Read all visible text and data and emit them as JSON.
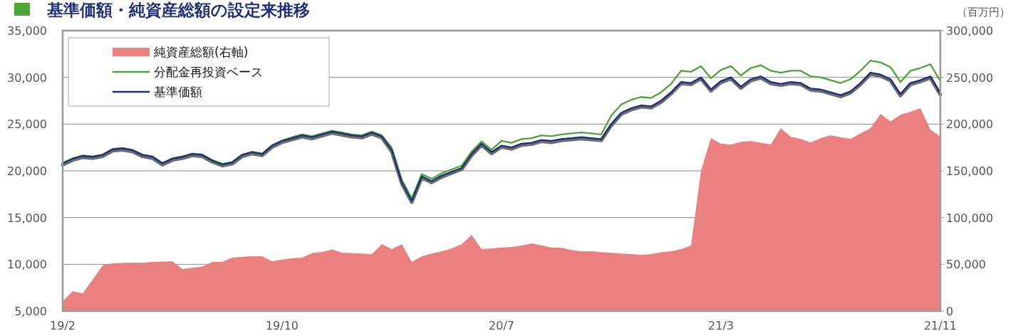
{
  "chart_data": {
    "type": "line",
    "title": "基準価額・純資産総額の設定来推移",
    "y2label": "（百万円）",
    "grid": "y",
    "legend": "top left",
    "categories": [
      "19/2",
      null,
      null,
      null,
      null,
      null,
      null,
      null,
      null,
      null,
      null,
      null,
      null,
      null,
      null,
      null,
      null,
      null,
      null,
      null,
      null,
      null,
      "19/10",
      null,
      null,
      null,
      null,
      null,
      null,
      null,
      null,
      null,
      null,
      null,
      null,
      null,
      null,
      null,
      null,
      null,
      null,
      null,
      null,
      null,
      "20/7",
      null,
      null,
      null,
      null,
      null,
      null,
      null,
      null,
      null,
      null,
      null,
      null,
      null,
      null,
      null,
      null,
      null,
      null,
      null,
      null,
      null,
      "21/3",
      null,
      null,
      null,
      null,
      null,
      null,
      null,
      null,
      null,
      null,
      null,
      null,
      null,
      null,
      null,
      null,
      null,
      null,
      null,
      null,
      null,
      "21/11"
    ],
    "ylim": [
      5000,
      35000
    ],
    "yticks": [
      {
        "value": 5000,
        "label": "5,000"
      },
      {
        "value": 10000,
        "label": "10,000"
      },
      {
        "value": 15000,
        "label": "15,000"
      },
      {
        "value": 20000,
        "label": "20,000"
      },
      {
        "value": 25000,
        "label": "25,000"
      },
      {
        "value": 30000,
        "label": "30,000"
      },
      {
        "value": 35000,
        "label": "35,000"
      }
    ],
    "y2lim": [
      0,
      300000
    ],
    "y2ticks": [
      0,
      {
        "value": 50000,
        "label": "50,000"
      },
      {
        "value": 100000,
        "label": "100,000"
      },
      {
        "value": 150000,
        "label": "150,000"
      },
      {
        "value": 200000,
        "label": "200,000"
      },
      {
        "value": 250000,
        "label": "250,000"
      },
      {
        "value": 300000,
        "label": "300,000"
      }
    ],
    "series": [
      {
        "name": "純資産総額(右軸)",
        "type": "area",
        "axis": "y2",
        "color": "#eb8080",
        "values": [
          10700,
          21300,
          19000,
          33500,
          49000,
          51000,
          51500,
          51800,
          51800,
          52500,
          53000,
          53300,
          45000,
          46500,
          47500,
          52500,
          52800,
          57100,
          58000,
          58600,
          58600,
          53300,
          55000,
          56500,
          57100,
          62000,
          63200,
          66000,
          62400,
          62000,
          61500,
          61000,
          71600,
          66200,
          71600,
          52500,
          58600,
          61500,
          64000,
          67000,
          71600,
          81500,
          66200,
          67000,
          68000,
          68500,
          70000,
          72300,
          70500,
          68000,
          67800,
          65500,
          64000,
          64000,
          63000,
          62400,
          61500,
          61000,
          60200,
          61000,
          63000,
          64000,
          66200,
          70000,
          150000,
          185000,
          179000,
          178200,
          181000,
          182000,
          180000,
          178200,
          195700,
          186500,
          184000,
          180500,
          185000,
          188100,
          186000,
          184300,
          190000,
          195700,
          210900,
          203000,
          210000,
          213200,
          217000,
          194200,
          186500
        ]
      },
      {
        "type": "line",
        "color": "#6e6e6e",
        "values": [
          20650,
          21150,
          21450,
          21350,
          21550,
          22150,
          22250,
          22050,
          21550,
          21350,
          20650,
          21150,
          21350,
          21650,
          21550,
          20950,
          20550,
          20750,
          21550,
          21850,
          21650,
          22550,
          23050,
          23350,
          23650,
          23450,
          23750,
          24050,
          23850,
          23650,
          23550,
          23950,
          23550,
          22050,
          18650,
          16650,
          19250,
          18750,
          19350,
          19750,
          20150,
          21650,
          22750,
          21850,
          22550,
          22350,
          22750,
          22850,
          23150,
          23050,
          23250,
          23350,
          23450,
          23350,
          23250,
          24850,
          26050,
          26550,
          26850,
          26750,
          27350,
          28250,
          29350,
          29250,
          29850,
          28550,
          29450,
          29850,
          28850,
          29650,
          29950,
          29350,
          29150,
          29350,
          29250,
          28650,
          28550,
          28250,
          27950,
          28350,
          29250,
          30350,
          30150,
          29650,
          28050,
          29250,
          29550,
          29950,
          28150
        ]
      },
      {
        "name": "分配金再投資ベース",
        "type": "line",
        "color": "#4ca535",
        "values": [
          20850,
          21350,
          21650,
          21550,
          21750,
          22350,
          22450,
          22250,
          21750,
          21550,
          20850,
          21350,
          21550,
          21850,
          21750,
          21150,
          20750,
          20950,
          21750,
          22050,
          21850,
          22750,
          23250,
          23600,
          23900,
          23700,
          24000,
          24300,
          24100,
          23900,
          23800,
          24200,
          23800,
          22450,
          19050,
          17050,
          19650,
          19150,
          19750,
          20150,
          20550,
          22050,
          23150,
          22250,
          23200,
          23000,
          23400,
          23500,
          23800,
          23700,
          23900,
          24000,
          24100,
          24000,
          23900,
          25900,
          27100,
          27600,
          27900,
          27800,
          28400,
          29300,
          30700,
          30600,
          31200,
          29900,
          30800,
          31200,
          30200,
          31000,
          31300,
          30700,
          30500,
          30700,
          30700,
          30100,
          30000,
          29700,
          29400,
          29800,
          30700,
          31800,
          31600,
          31100,
          29500,
          30700,
          31000,
          31400,
          29600
        ]
      },
      {
        "name": "基準価額",
        "type": "line",
        "color": "#1f2e7a",
        "values": [
          20800,
          21300,
          21600,
          21500,
          21700,
          22300,
          22400,
          22200,
          21700,
          21500,
          20800,
          21300,
          21500,
          21800,
          21700,
          21100,
          20700,
          20900,
          21700,
          22000,
          21800,
          22700,
          23200,
          23500,
          23800,
          23600,
          23900,
          24200,
          24000,
          23800,
          23700,
          24100,
          23700,
          22200,
          18800,
          16800,
          19400,
          18900,
          19500,
          19900,
          20300,
          21800,
          22900,
          22000,
          22700,
          22500,
          22900,
          23000,
          23300,
          23200,
          23400,
          23500,
          23600,
          23500,
          23400,
          25000,
          26200,
          26700,
          27000,
          26900,
          27500,
          28400,
          29500,
          29400,
          30000,
          28700,
          29600,
          30000,
          29000,
          29800,
          30100,
          29500,
          29300,
          29500,
          29400,
          28800,
          28700,
          28400,
          28100,
          28500,
          29400,
          30500,
          30300,
          29800,
          28200,
          29400,
          29700,
          30100,
          28300
        ]
      }
    ]
  }
}
